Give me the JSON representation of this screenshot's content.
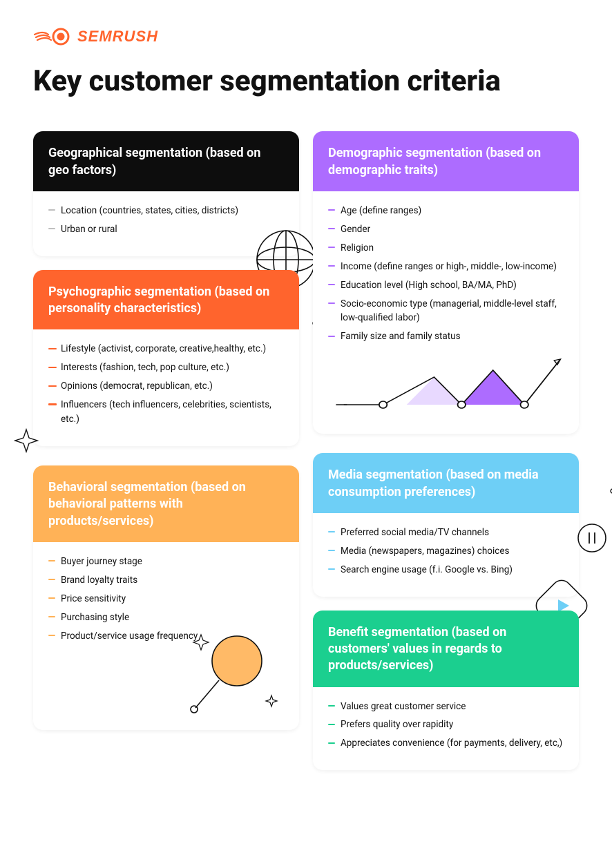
{
  "brand": {
    "name": "SEMRUSH",
    "color": "#ff642d"
  },
  "title": "Key customer segmentation criteria",
  "title_color": "#111111",
  "title_fontsize": 42,
  "background_color": "#ffffff",
  "card_border_radius": 14,
  "cards": {
    "geographical": {
      "header_bg": "#0d0d0d",
      "header_text_color": "#ffffff",
      "dash_color": "#bfbfbf",
      "title": "Geographical segmentation (based on geo factors)",
      "items": [
        "Location (countries, states, cities, districts)",
        "Urban or rural"
      ]
    },
    "psychographic": {
      "header_bg": "#ff642d",
      "header_text_color": "#ffffff",
      "dash_color": "#ff642d",
      "title": "Psychographic segmentation (based on personality characteristics)",
      "items": [
        "Lifestyle (activist, corporate, creative,healthy, etc.)",
        "Interests (fashion, tech, pop culture, etc.)",
        "Opinions (democrat, republican, etc.)",
        "Influencers (tech influencers, celebrities, scientists, etc.)"
      ]
    },
    "demographic": {
      "header_bg": "#ad6cff",
      "header_text_color": "#ffffff",
      "dash_color": "#ad6cff",
      "title": "Demographic segmentation (based on demographic traits)",
      "items": [
        "Age (define ranges)",
        "Gender",
        "Religion",
        "Income (define ranges or high-, middle-, low-income)",
        "Education level (High school, BA/MA, PhD)",
        "Socio-economic type (managerial, middle-level staff, low-qualified labor)",
        "Family size and family status"
      ],
      "chart": {
        "type": "line-with-peaks",
        "peak1_fill": "#e8d9ff",
        "peak2_fill": "#ad6cff",
        "line_color": "#111111",
        "node_fill": "#ffffff",
        "node_stroke": "#111111"
      }
    },
    "behavioral": {
      "header_bg": "#ffb257",
      "header_text_color": "#ffffff",
      "dash_color": "#ffb257",
      "title": "Behavioral segmentation (based on behavioral patterns with products/services)",
      "items": [
        "Buyer journey stage",
        "Brand loyalty traits",
        "Price sensitivity",
        "Purchasing style",
        "Product/service usage frequency"
      ]
    },
    "media": {
      "header_bg": "#6ecff6",
      "header_text_color": "#ffffff",
      "dash_color": "#6ecff6",
      "title": "Media segmentation (based on media consumption preferences)",
      "items": [
        "Preferred social media/TV channels",
        "Media (newspapers, magazines) choices",
        "Search engine usage (f.i. Google vs. Bing)"
      ]
    },
    "benefit": {
      "header_bg": "#1bcf8f",
      "header_text_color": "#ffffff",
      "dash_color": "#1bcf8f",
      "title": "Benefit segmentation (based on customers' values in regards to products/services)",
      "items": [
        "Values great customer service",
        "Prefers quality over rapidity",
        "Appreciates convenience (for payments, delivery, etc,)"
      ]
    }
  },
  "decorations": {
    "globe_stroke": "#111111",
    "magnifier_fill": "#ffb257",
    "magnifier_stroke": "#111111",
    "sparkle_stroke": "#111111",
    "pause_stroke": "#111111",
    "play_fill": "#6ecff6",
    "arrow_stroke": "#111111",
    "dot_stroke": "#111111"
  }
}
